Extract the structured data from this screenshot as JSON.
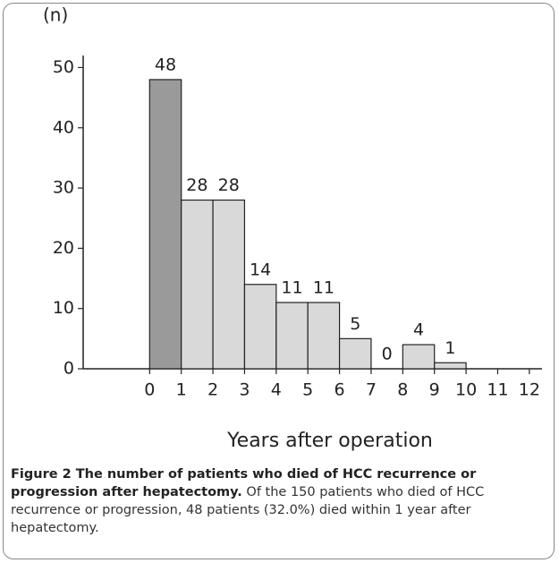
{
  "chart_data": {
    "type": "histogram",
    "y_label": "(n)",
    "x_label": "Years after operation",
    "bins": [
      0,
      1,
      2,
      3,
      4,
      5,
      6,
      7,
      8,
      9,
      10
    ],
    "values": [
      48,
      28,
      28,
      14,
      11,
      11,
      5,
      0,
      4,
      1
    ],
    "colors": [
      "#9a9a9a",
      "#d9d9d9",
      "#d9d9d9",
      "#d9d9d9",
      "#d9d9d9",
      "#d9d9d9",
      "#d9d9d9",
      "#d9d9d9",
      "#d9d9d9",
      "#d9d9d9"
    ],
    "xlim": [
      -2.1,
      12.4
    ],
    "xticks": [
      0,
      1,
      2,
      3,
      4,
      5,
      6,
      7,
      8,
      9,
      10,
      11,
      12
    ],
    "ylim": [
      0,
      52
    ],
    "yticks": [
      0,
      10,
      20,
      30,
      40,
      50
    ],
    "grid": false
  },
  "caption": {
    "title": "Figure 2 The number of patients who died of HCC recurrence or progression after hepatectomy.",
    "text": "Of the 150 patients who died of HCC recurrence or progression, 48 patients (32.0%) died within 1 year after hepatectomy."
  }
}
